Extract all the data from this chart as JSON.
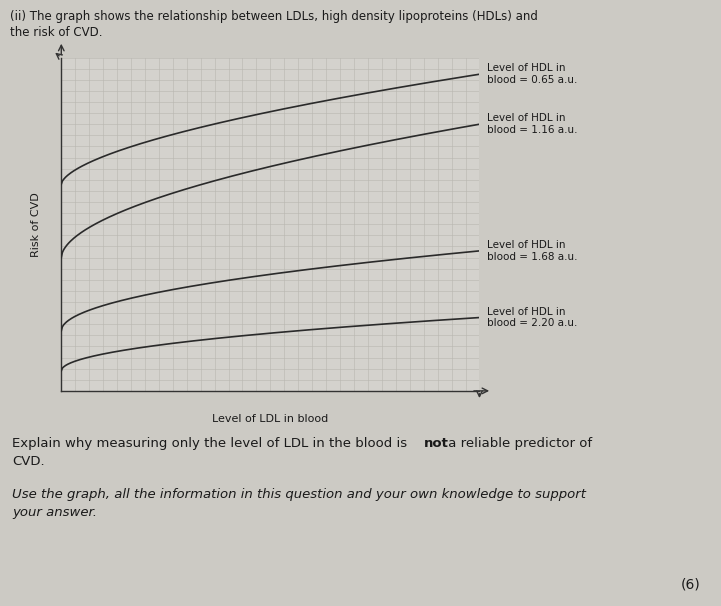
{
  "title_line1": "(ii) The graph shows the relationship between LDLs, high density lipoproteins (HDLs) and",
  "title_line2": "the risk of CVD.",
  "xlabel": "Level of LDL in blood",
  "ylabel": "Risk of CVD",
  "plot_bg": "#d4d2cd",
  "page_bg": "#cccac4",
  "grid_color": "#b8b6b0",
  "line_color": "#2a2a2a",
  "hdl_labels": [
    "Level of HDL in\nblood = 0.65 a.u.",
    "Level of HDL in\nblood = 1.16 a.u.",
    "Level of HDL in\nblood = 1.68 a.u.",
    "Level of HDL in\nblood = 2.20 a.u."
  ],
  "curve_params": [
    [
      0.62,
      0.95,
      0.6
    ],
    [
      0.4,
      0.8,
      0.55
    ],
    [
      0.18,
      0.42,
      0.5
    ],
    [
      0.06,
      0.22,
      0.5
    ]
  ],
  "title_fontsize": 8.5,
  "axis_label_fontsize": 8,
  "annotation_fontsize": 7.5,
  "body_fontsize": 9.5
}
